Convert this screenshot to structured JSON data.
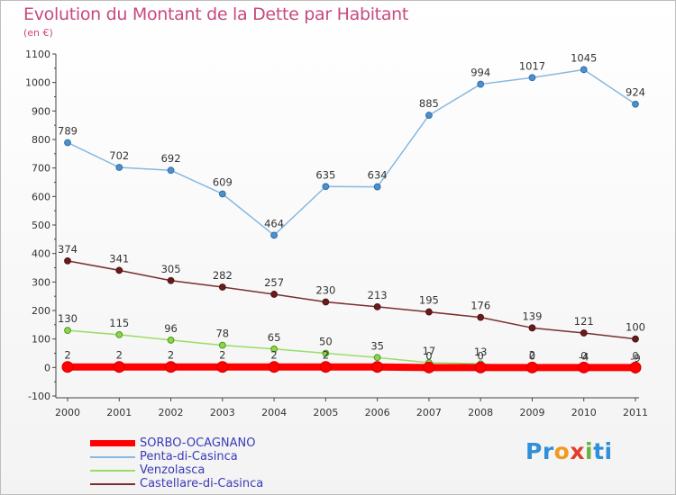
{
  "title": "Evolution du Montant de la Dette par Habitant",
  "subtitle": "(en €)",
  "logo": {
    "parts": [
      "Pr",
      "o",
      "x",
      "i",
      "ti"
    ],
    "colors": [
      "#2f8fd8",
      "#f29a1e",
      "#e23c2c",
      "#6ab43e",
      "#2f8fd8"
    ]
  },
  "chart_data": {
    "type": "line",
    "x": [
      2000,
      2001,
      2002,
      2003,
      2004,
      2005,
      2006,
      2007,
      2008,
      2009,
      2010,
      2011
    ],
    "ylim": [
      -100,
      1100
    ],
    "yticks": [
      -100,
      0,
      100,
      200,
      300,
      400,
      500,
      600,
      700,
      800,
      900,
      1000,
      1100
    ],
    "grid": false,
    "legend_position": "bottom-left",
    "series": [
      {
        "name": "SORBO-OCAGNANO",
        "color": "#ff0000",
        "values": [
          2,
          2,
          2,
          2,
          2,
          2,
          2,
          0,
          0,
          0,
          0,
          0
        ],
        "labels": [
          "2",
          "2",
          "2",
          "2",
          "2",
          "2",
          "",
          "0",
          "0",
          "0",
          "0",
          "0"
        ]
      },
      {
        "name": "Penta-di-Casinca",
        "color": "#86b8e0",
        "values": [
          789,
          702,
          692,
          609,
          464,
          635,
          634,
          885,
          994,
          1017,
          1045,
          924
        ],
        "labels": [
          "789",
          "702",
          "692",
          "609",
          "464",
          "635",
          "634",
          "885",
          "994",
          "1017",
          "1045",
          "924"
        ]
      },
      {
        "name": "Venzolasca",
        "color": "#99dd66",
        "values": [
          130,
          115,
          96,
          78,
          65,
          50,
          35,
          17,
          13,
          2,
          -4,
          -9
        ],
        "labels": [
          "130",
          "115",
          "96",
          "78",
          "65",
          "50",
          "35",
          "17",
          "13",
          "2",
          "-4",
          "-9"
        ]
      },
      {
        "name": "Castellare-di-Casinca",
        "color": "#7a2e2e",
        "values": [
          374,
          341,
          305,
          282,
          257,
          230,
          213,
          195,
          176,
          139,
          121,
          100
        ],
        "labels": [
          "374",
          "341",
          "305",
          "282",
          "257",
          "230",
          "213",
          "195",
          "176",
          "139",
          "121",
          "100"
        ]
      }
    ]
  }
}
